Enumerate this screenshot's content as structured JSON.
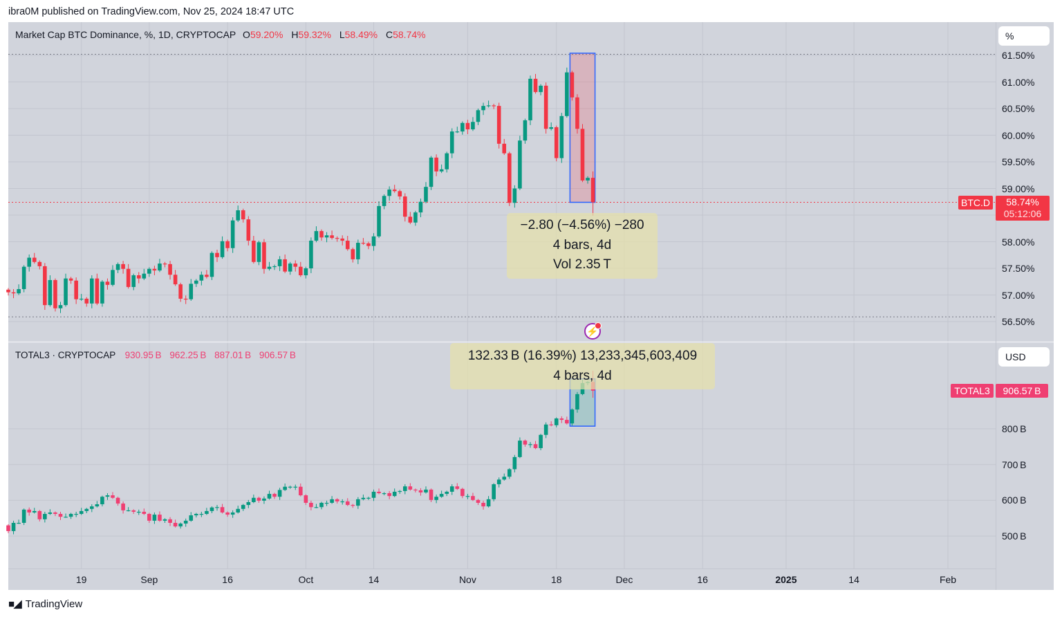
{
  "header": {
    "published": "ibra0M published on TradingView.com, Nov 25, 2024 18:47 UTC"
  },
  "footer": {
    "logo_text": "TradingView",
    "logo_mark": "TV"
  },
  "colors": {
    "up": "#089981",
    "down_top": "#f23645",
    "down_bottom": "#ef3f72",
    "background": "#d1d4dc",
    "measure_border": "#2962ff",
    "flash": "#9c27b0"
  },
  "top_pane": {
    "title": "Market Cap BTC Dominance, %, 1D, CRYPTOCAP",
    "ohlc": {
      "o_label": "O",
      "o": "59.20%",
      "h_label": "H",
      "h": "59.32%",
      "l_label": "L",
      "l": "58.49%",
      "c_label": "C",
      "c": "58.74%"
    },
    "unit_button": "%",
    "symbol_label": "BTC.D",
    "last_value": "58.74%",
    "countdown": "05:12:06",
    "measure": {
      "line1": "−2.80 (−4.56%) −280",
      "line2": "4 bars, 4d",
      "line3": "Vol 2.35 T"
    }
  },
  "bottom_pane": {
    "title": "TOTAL3 · CRYPTOCAP",
    "ohlc": {
      "o": "930.95 B",
      "h": "962.25 B",
      "l": "887.01 B",
      "c": "906.57 B"
    },
    "unit_button": "USD",
    "symbol_label": "TOTAL3",
    "last_value": "906.57 B",
    "measure": {
      "line1": "132.33 B (16.39%) 13,233,345,603,409",
      "line2": "4 bars, 4d"
    }
  },
  "chart_data": [
    {
      "type": "candlestick",
      "title": "Market Cap BTC Dominance, %, 1D, CRYPTOCAP",
      "ylabel": "%",
      "ylim": [
        56.5,
        61.5
      ],
      "yticks": [
        {
          "label": "61.50%",
          "value": 61.5
        },
        {
          "label": "61.00%",
          "value": 61.0
        },
        {
          "label": "60.50%",
          "value": 60.5
        },
        {
          "label": "60.00%",
          "value": 60.0
        },
        {
          "label": "59.50%",
          "value": 59.5
        },
        {
          "label": "59.00%",
          "value": 59.0
        },
        {
          "label": "58.00%",
          "value": 58.0
        },
        {
          "label": "57.50%",
          "value": 57.5
        },
        {
          "label": "57.00%",
          "value": 57.0
        },
        {
          "label": "56.50%",
          "value": 56.5
        }
      ],
      "first_open": 57.1,
      "closes": [
        57.05,
        57.03,
        57.11,
        57.53,
        57.7,
        57.62,
        57.54,
        56.81,
        57.28,
        56.75,
        56.81,
        57.31,
        57.27,
        56.92,
        56.93,
        56.84,
        57.31,
        56.84,
        57.25,
        57.19,
        57.47,
        57.58,
        57.49,
        57.15,
        57.37,
        57.31,
        57.4,
        57.49,
        57.46,
        57.59,
        57.58,
        57.38,
        57.2,
        56.93,
        56.92,
        57.21,
        57.27,
        57.38,
        57.34,
        57.79,
        57.71,
        58.01,
        57.88,
        58.4,
        58.59,
        58.42,
        58.02,
        57.62,
        57.99,
        57.49,
        57.53,
        57.54,
        57.67,
        57.44,
        57.59,
        57.53,
        57.37,
        57.5,
        58.02,
        58.2,
        58.08,
        58.12,
        58.07,
        58.06,
        58.02,
        57.86,
        57.67,
        57.98,
        57.97,
        57.92,
        58.1,
        58.67,
        58.86,
        58.98,
        58.95,
        58.85,
        58.47,
        58.36,
        58.55,
        58.75,
        59.03,
        59.58,
        59.32,
        59.36,
        59.66,
        60.07,
        60.07,
        60.23,
        60.11,
        60.25,
        60.47,
        60.55,
        60.56,
        60.55,
        59.84,
        59.66,
        58.73,
        59.0,
        59.9,
        60.28,
        61.06,
        60.81,
        60.93,
        60.12,
        60.15,
        59.57,
        60.36,
        61.18,
        60.71,
        60.12,
        59.15,
        59.2,
        58.74
      ],
      "last_bar": {
        "open": 59.2,
        "high": 59.32,
        "low": 58.49,
        "close": 58.74
      },
      "last_price": 58.74,
      "range_lines": [
        61.52,
        56.59
      ],
      "measure_range": {
        "from": 61.54,
        "to": 58.74,
        "bars": 4
      }
    },
    {
      "type": "candlestick",
      "title": "TOTAL3 · CRYPTOCAP",
      "ylabel": "USD (B)",
      "yticks": [
        {
          "label": "800 B",
          "value": 800
        },
        {
          "label": "700 B",
          "value": 700
        },
        {
          "label": "600 B",
          "value": 600
        },
        {
          "label": "500 B",
          "value": 500
        }
      ],
      "first_open": 530,
      "closes": [
        514,
        537,
        537,
        574,
        566,
        570,
        547,
        562,
        566,
        562,
        554,
        554,
        562,
        562,
        570,
        576,
        583,
        589,
        610,
        614,
        607,
        591,
        572,
        572,
        568,
        568,
        562,
        543,
        560,
        543,
        547,
        537,
        527,
        535,
        543,
        558,
        562,
        562,
        570,
        580,
        581,
        566,
        560,
        566,
        576,
        587,
        595,
        607,
        599,
        605,
        618,
        610,
        629,
        638,
        638,
        638,
        614,
        593,
        581,
        581,
        593,
        593,
        603,
        597,
        597,
        587,
        585,
        603,
        607,
        607,
        624,
        620,
        620,
        612,
        624,
        626,
        639,
        630,
        628,
        622,
        630,
        601,
        610,
        618,
        624,
        639,
        632,
        612,
        612,
        601,
        593,
        583,
        603,
        645,
        658,
        666,
        687,
        721,
        767,
        756,
        757,
        746,
        783,
        812,
        810,
        829,
        825,
        815,
        854,
        897,
        928,
        930.95,
        906.57
      ],
      "last_bar": {
        "open": 930.95,
        "high": 962.25,
        "low": 887.01,
        "close": 906.57
      },
      "last_price": 906.57,
      "measure_range": {
        "from": 807.4,
        "to": 939.7,
        "bars": 4
      }
    }
  ],
  "time_axis": {
    "ticks": [
      {
        "label": "19",
        "date": "2024-08-19"
      },
      {
        "label": "Sep",
        "date": "2024-09-01"
      },
      {
        "label": "16",
        "date": "2024-09-16"
      },
      {
        "label": "Oct",
        "date": "2024-10-01"
      },
      {
        "label": "14",
        "date": "2024-10-14"
      },
      {
        "label": "Nov",
        "date": "2024-11-01"
      },
      {
        "label": "18",
        "date": "2024-11-18"
      },
      {
        "label": "Dec",
        "date": "2024-12-01"
      },
      {
        "label": "16",
        "date": "2024-12-16"
      },
      {
        "label": "2025",
        "date": "2025-01-01",
        "bold": true
      },
      {
        "label": "14",
        "date": "2025-01-14"
      },
      {
        "label": "Feb",
        "date": "2025-02-01"
      }
    ]
  }
}
